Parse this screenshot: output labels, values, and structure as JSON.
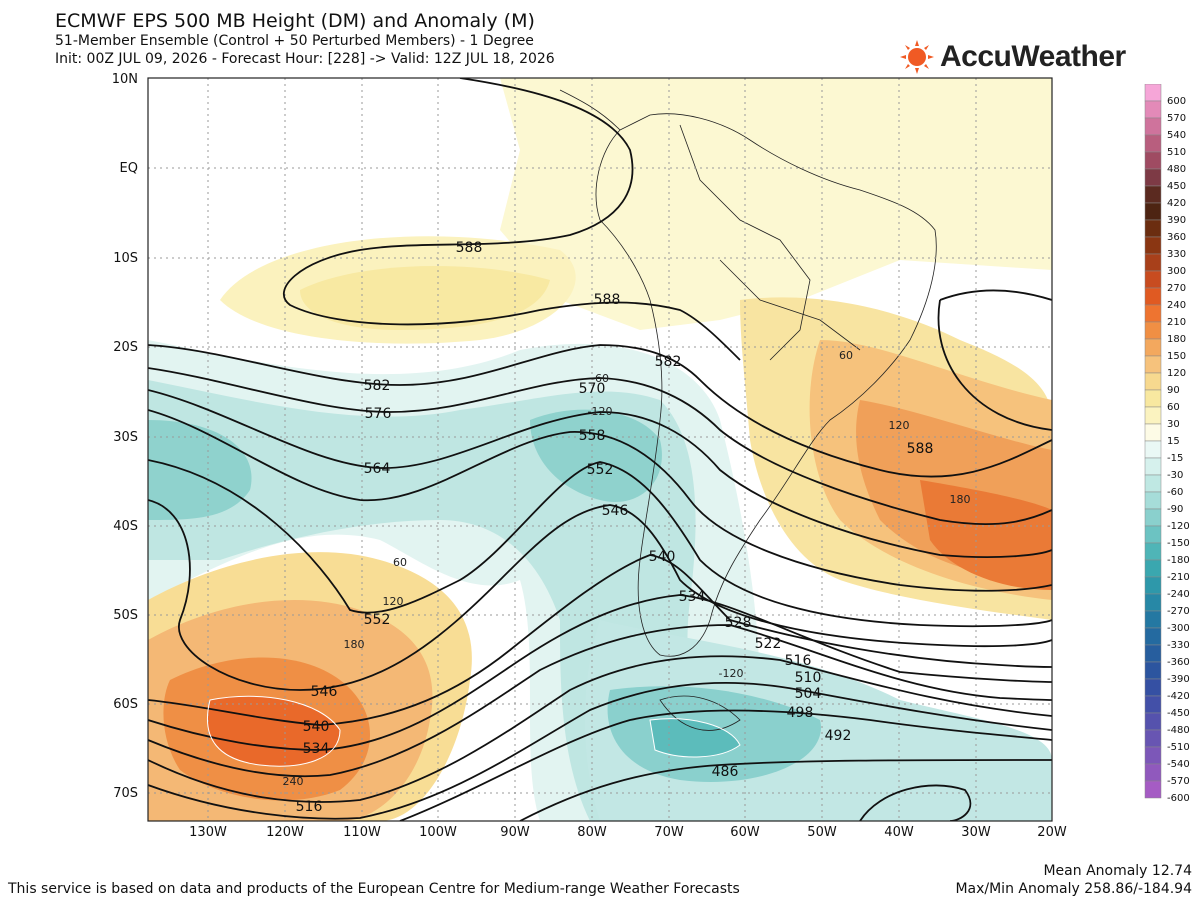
{
  "header": {
    "title": "ECMWF EPS 500 MB Height (DM) and Anomaly (M)",
    "subtitle": "51-Member Ensemble (Control + 50 Perturbed Members) - 1 Degree",
    "init_line": "Init: 00Z JUL 09, 2026 - Forecast Hour: [228] -> Valid: 12Z JUL 18, 2026"
  },
  "brand": {
    "name": "AccuWeather",
    "icon": "sun-icon",
    "color": "#f05a24"
  },
  "axes": {
    "lat_labels": [
      "10N",
      "EQ",
      "10S",
      "20S",
      "30S",
      "40S",
      "50S",
      "60S",
      "70S"
    ],
    "lon_labels": [
      "130W",
      "120W",
      "110W",
      "100W",
      "90W",
      "80W",
      "70W",
      "60W",
      "50W",
      "40W",
      "30W",
      "20W"
    ]
  },
  "legend": {
    "labels": [
      "600",
      "570",
      "540",
      "510",
      "480",
      "450",
      "420",
      "390",
      "360",
      "330",
      "300",
      "270",
      "240",
      "210",
      "180",
      "150",
      "120",
      "90",
      "60",
      "30",
      "15",
      "-15",
      "-30",
      "-60",
      "-90",
      "-120",
      "-150",
      "-180",
      "-210",
      "-240",
      "-270",
      "-300",
      "-330",
      "-360",
      "-390",
      "-420",
      "-450",
      "-480",
      "-510",
      "-540",
      "-570",
      "-600"
    ],
    "colors": [
      "#f6a6d8",
      "#e38ab8",
      "#cf739c",
      "#b85e7e",
      "#9f4b62",
      "#7d3a45",
      "#5b2a20",
      "#4d2412",
      "#6b2d10",
      "#8a3612",
      "#a8401a",
      "#c84c20",
      "#e05a22",
      "#ee7430",
      "#f08f44",
      "#f3a85e",
      "#f6c27c",
      "#f7d98f",
      "#f8e8a0",
      "#fbf3c0",
      "#fdfbe6",
      "#eaf8f5",
      "#d6f1ed",
      "#bfe8e3",
      "#a6ddd9",
      "#8ad0cd",
      "#6cc3c2",
      "#4fb5b7",
      "#3aa7af",
      "#2e98aa",
      "#2788a6",
      "#2478a2",
      "#246aa0",
      "#275e9e",
      "#2c559f",
      "#3550a3",
      "#4350a8",
      "#5552ad",
      "#6855b2",
      "#7c57b8",
      "#9059bd",
      "#a55cc4"
    ]
  },
  "contour_labels": [
    "588",
    "588",
    "582",
    "582",
    "576",
    "570",
    "564",
    "558",
    "552",
    "546",
    "546",
    "540",
    "534",
    "528",
    "522",
    "516",
    "510",
    "504",
    "498",
    "492",
    "486",
    "552",
    "546",
    "540",
    "534",
    "516"
  ],
  "anomaly_labels": [
    "-60",
    "-120",
    "60",
    "120",
    "180",
    "240",
    "120",
    "180",
    "60",
    "-120"
  ],
  "footer": {
    "attribution": "This service is based on data and products of the European Centre for Medium-range Weather Forecasts",
    "mean_anomaly": "Mean Anomaly 12.74",
    "maxmin_anomaly": "Max/Min Anomaly 258.86/-184.94"
  }
}
